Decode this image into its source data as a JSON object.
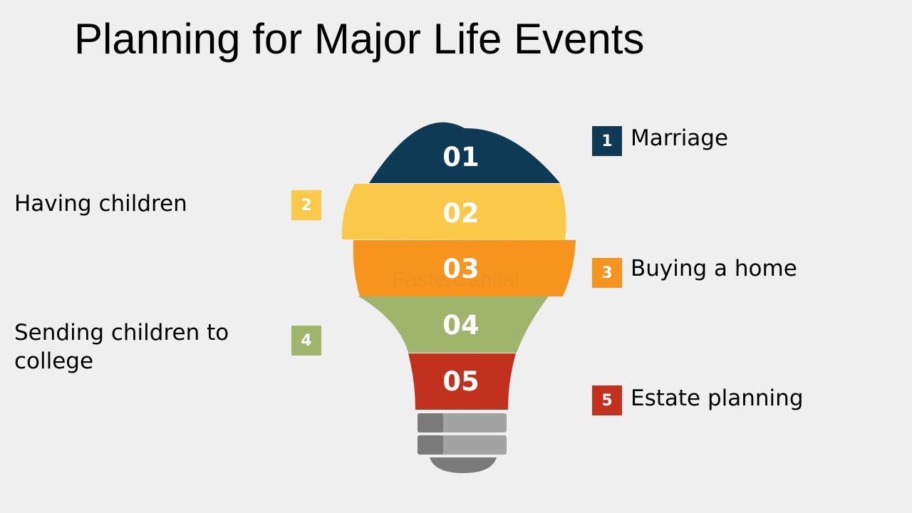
{
  "title": "Planning for Major Life Events",
  "colors": {
    "navy": "#0e3a56",
    "yellow": "#fbc94a",
    "orange": "#f7941d",
    "green": "#9fb56b",
    "red": "#c1311e",
    "base": "#8d8d8d"
  },
  "segments": [
    "01",
    "02",
    "03",
    "04",
    "05"
  ],
  "watermark": "FasterCapital",
  "items": [
    {
      "num": "1",
      "label": "Marriage"
    },
    {
      "num": "2",
      "label": "Having children"
    },
    {
      "num": "3",
      "label": "Buying a home"
    },
    {
      "num": "4",
      "label": "Sending children to college"
    },
    {
      "num": "5",
      "label": "Estate planning"
    }
  ]
}
